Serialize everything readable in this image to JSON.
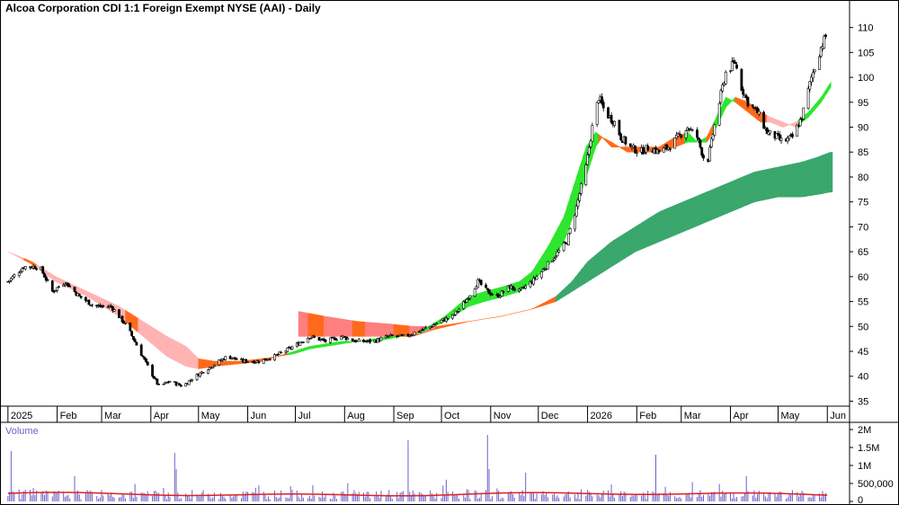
{
  "chart_data": {
    "type": "candlestick",
    "title": "Alcoa Corporation CDI 1:1 Foreign Exempt NYSE (AAI) - Daily",
    "price_axis": {
      "ylim": [
        34,
        113
      ],
      "ticks": [
        35,
        40,
        45,
        50,
        55,
        60,
        65,
        70,
        75,
        80,
        85,
        90,
        95,
        100,
        105,
        110
      ]
    },
    "time_axis": {
      "labels": [
        "2025",
        "Feb",
        "Mar",
        "Apr",
        "May",
        "Jun",
        "Jul",
        "Aug",
        "Sep",
        "Oct",
        "Nov",
        "Dec",
        "2026",
        "Feb",
        "Mar",
        "Apr",
        "May",
        "Jun"
      ],
      "positions": [
        0,
        31,
        59,
        90,
        120,
        151,
        181,
        212,
        243,
        273,
        304,
        334,
        365,
        396,
        424,
        455,
        485,
        516
      ]
    },
    "price_keypoints": [
      [
        0,
        59
      ],
      [
        10,
        62
      ],
      [
        20,
        62
      ],
      [
        28,
        57
      ],
      [
        36,
        59
      ],
      [
        45,
        56
      ],
      [
        55,
        54
      ],
      [
        65,
        54
      ],
      [
        75,
        50
      ],
      [
        88,
        42
      ],
      [
        95,
        38
      ],
      [
        102,
        39
      ],
      [
        110,
        38
      ],
      [
        118,
        40
      ],
      [
        128,
        42
      ],
      [
        138,
        44
      ],
      [
        148,
        43
      ],
      [
        158,
        43
      ],
      [
        168,
        44
      ],
      [
        180,
        46
      ],
      [
        190,
        48
      ],
      [
        200,
        47
      ],
      [
        210,
        48
      ],
      [
        220,
        47
      ],
      [
        230,
        47
      ],
      [
        240,
        48
      ],
      [
        250,
        48
      ],
      [
        258,
        49
      ],
      [
        266,
        50
      ],
      [
        272,
        51
      ],
      [
        280,
        52
      ],
      [
        288,
        55
      ],
      [
        296,
        59
      ],
      [
        302,
        57
      ],
      [
        308,
        56
      ],
      [
        316,
        58
      ],
      [
        322,
        57
      ],
      [
        330,
        59
      ],
      [
        336,
        61
      ],
      [
        344,
        64
      ],
      [
        352,
        67
      ],
      [
        358,
        74
      ],
      [
        364,
        82
      ],
      [
        368,
        90
      ],
      [
        372,
        96
      ],
      [
        376,
        93
      ],
      [
        382,
        91
      ],
      [
        386,
        88
      ],
      [
        392,
        86
      ],
      [
        398,
        85
      ],
      [
        404,
        86
      ],
      [
        410,
        85
      ],
      [
        416,
        86
      ],
      [
        422,
        88
      ],
      [
        428,
        90
      ],
      [
        434,
        88
      ],
      [
        440,
        82
      ],
      [
        446,
        92
      ],
      [
        452,
        101
      ],
      [
        458,
        103
      ],
      [
        462,
        98
      ],
      [
        466,
        95
      ],
      [
        472,
        93
      ],
      [
        478,
        89
      ],
      [
        484,
        88
      ],
      [
        488,
        87
      ],
      [
        494,
        88
      ],
      [
        500,
        92
      ],
      [
        506,
        100
      ],
      [
        512,
        106
      ],
      [
        516,
        109
      ]
    ],
    "moving_average_ribbons": [
      {
        "kind": "short-term",
        "keypoints": [
          [
            0,
            65,
            65
          ],
          [
            15,
            63,
            62.5
          ],
          [
            30,
            60,
            59
          ],
          [
            50,
            57,
            56
          ],
          [
            70,
            54,
            52
          ],
          [
            85,
            51,
            48
          ],
          [
            100,
            48,
            44
          ],
          [
            112,
            46,
            42
          ],
          [
            120,
            43.5,
            41.5
          ],
          [
            130,
            43,
            42
          ],
          [
            145,
            43,
            42.5
          ],
          [
            160,
            43.5,
            43
          ],
          [
            170,
            44,
            44
          ],
          [
            180,
            45,
            44.5
          ],
          [
            190,
            46,
            45.5
          ],
          [
            200,
            46.5,
            46
          ],
          [
            210,
            47,
            46.5
          ],
          [
            220,
            47,
            47
          ],
          [
            230,
            47.5,
            47
          ],
          [
            240,
            48,
            47.5
          ],
          [
            255,
            48,
            48.5
          ],
          [
            265,
            49.5,
            50
          ],
          [
            275,
            51,
            52
          ],
          [
            290,
            54,
            56
          ],
          [
            300,
            55,
            57
          ],
          [
            312,
            56,
            58
          ],
          [
            322,
            57,
            59
          ],
          [
            330,
            59,
            61
          ],
          [
            340,
            62,
            66
          ],
          [
            350,
            67,
            72
          ],
          [
            358,
            74,
            80
          ],
          [
            364,
            80,
            86
          ],
          [
            370,
            86,
            89
          ],
          [
            374,
            88,
            88
          ],
          [
            380,
            87,
            86
          ],
          [
            390,
            85,
            86
          ],
          [
            400,
            85,
            86
          ],
          [
            410,
            85,
            86
          ],
          [
            420,
            86,
            88
          ],
          [
            428,
            87,
            89
          ],
          [
            434,
            87,
            87
          ],
          [
            440,
            87,
            88
          ],
          [
            446,
            90,
            92
          ],
          [
            452,
            94,
            96
          ],
          [
            458,
            96,
            95
          ],
          [
            466,
            95,
            93
          ],
          [
            474,
            93,
            91
          ],
          [
            480,
            92,
            91
          ],
          [
            488,
            91,
            90
          ],
          [
            496,
            90,
            91
          ],
          [
            504,
            92,
            93
          ],
          [
            512,
            95,
            96
          ],
          [
            518,
            98,
            99
          ]
        ]
      },
      {
        "kind": "long-term",
        "keypoints": [
          [
            183,
            53,
            48
          ],
          [
            200,
            52,
            48
          ],
          [
            220,
            51,
            48
          ],
          [
            240,
            50.5,
            48
          ],
          [
            255,
            50,
            48
          ],
          [
            270,
            50,
            49.5
          ],
          [
            290,
            51,
            51
          ],
          [
            310,
            52,
            52
          ],
          [
            330,
            53.5,
            53.5
          ],
          [
            345,
            56,
            55
          ],
          [
            355,
            59,
            57
          ],
          [
            365,
            63,
            59
          ],
          [
            380,
            67,
            62
          ],
          [
            395,
            70,
            65
          ],
          [
            410,
            73,
            67
          ],
          [
            425,
            75,
            69
          ],
          [
            440,
            77,
            71
          ],
          [
            455,
            79,
            73
          ],
          [
            470,
            81,
            75
          ],
          [
            485,
            82,
            76
          ],
          [
            500,
            83,
            76
          ],
          [
            510,
            84,
            76.5
          ],
          [
            518,
            85,
            77
          ]
        ]
      }
    ],
    "volume_panel": {
      "label": "Volume",
      "ylim": [
        0,
        2000000
      ],
      "ticks": [
        {
          "value": 0,
          "label": "0"
        },
        {
          "value": 500000,
          "label": "500,000"
        },
        {
          "value": 1000000,
          "label": "1M"
        },
        {
          "value": 1500000,
          "label": "1.5M"
        },
        {
          "value": 2000000,
          "label": "2M"
        }
      ],
      "average_level": 200000,
      "spikes": [
        [
          2,
          1400000
        ],
        [
          42,
          700000
        ],
        [
          105,
          1350000
        ],
        [
          106,
          900000
        ],
        [
          138,
          650000
        ],
        [
          250,
          1950000
        ],
        [
          251,
          1900000
        ],
        [
          252,
          1700000
        ],
        [
          302,
          1850000
        ],
        [
          303,
          900000
        ],
        [
          326,
          800000
        ],
        [
          408,
          1300000
        ],
        [
          465,
          700000
        ]
      ]
    },
    "colors": {
      "up_candle": "#ffffff",
      "down_candle": "#000000",
      "ribbon_up": "#2ee62e",
      "ribbon_down": "#ff6a1a",
      "ribbon_weak_up": "#ffb3b3",
      "ribbon_weak_down": "#ff7f7f",
      "long_ribbon_up": "#3aa76d",
      "volume_bar": "#6a63c8",
      "volume_average": "#e02020"
    }
  }
}
